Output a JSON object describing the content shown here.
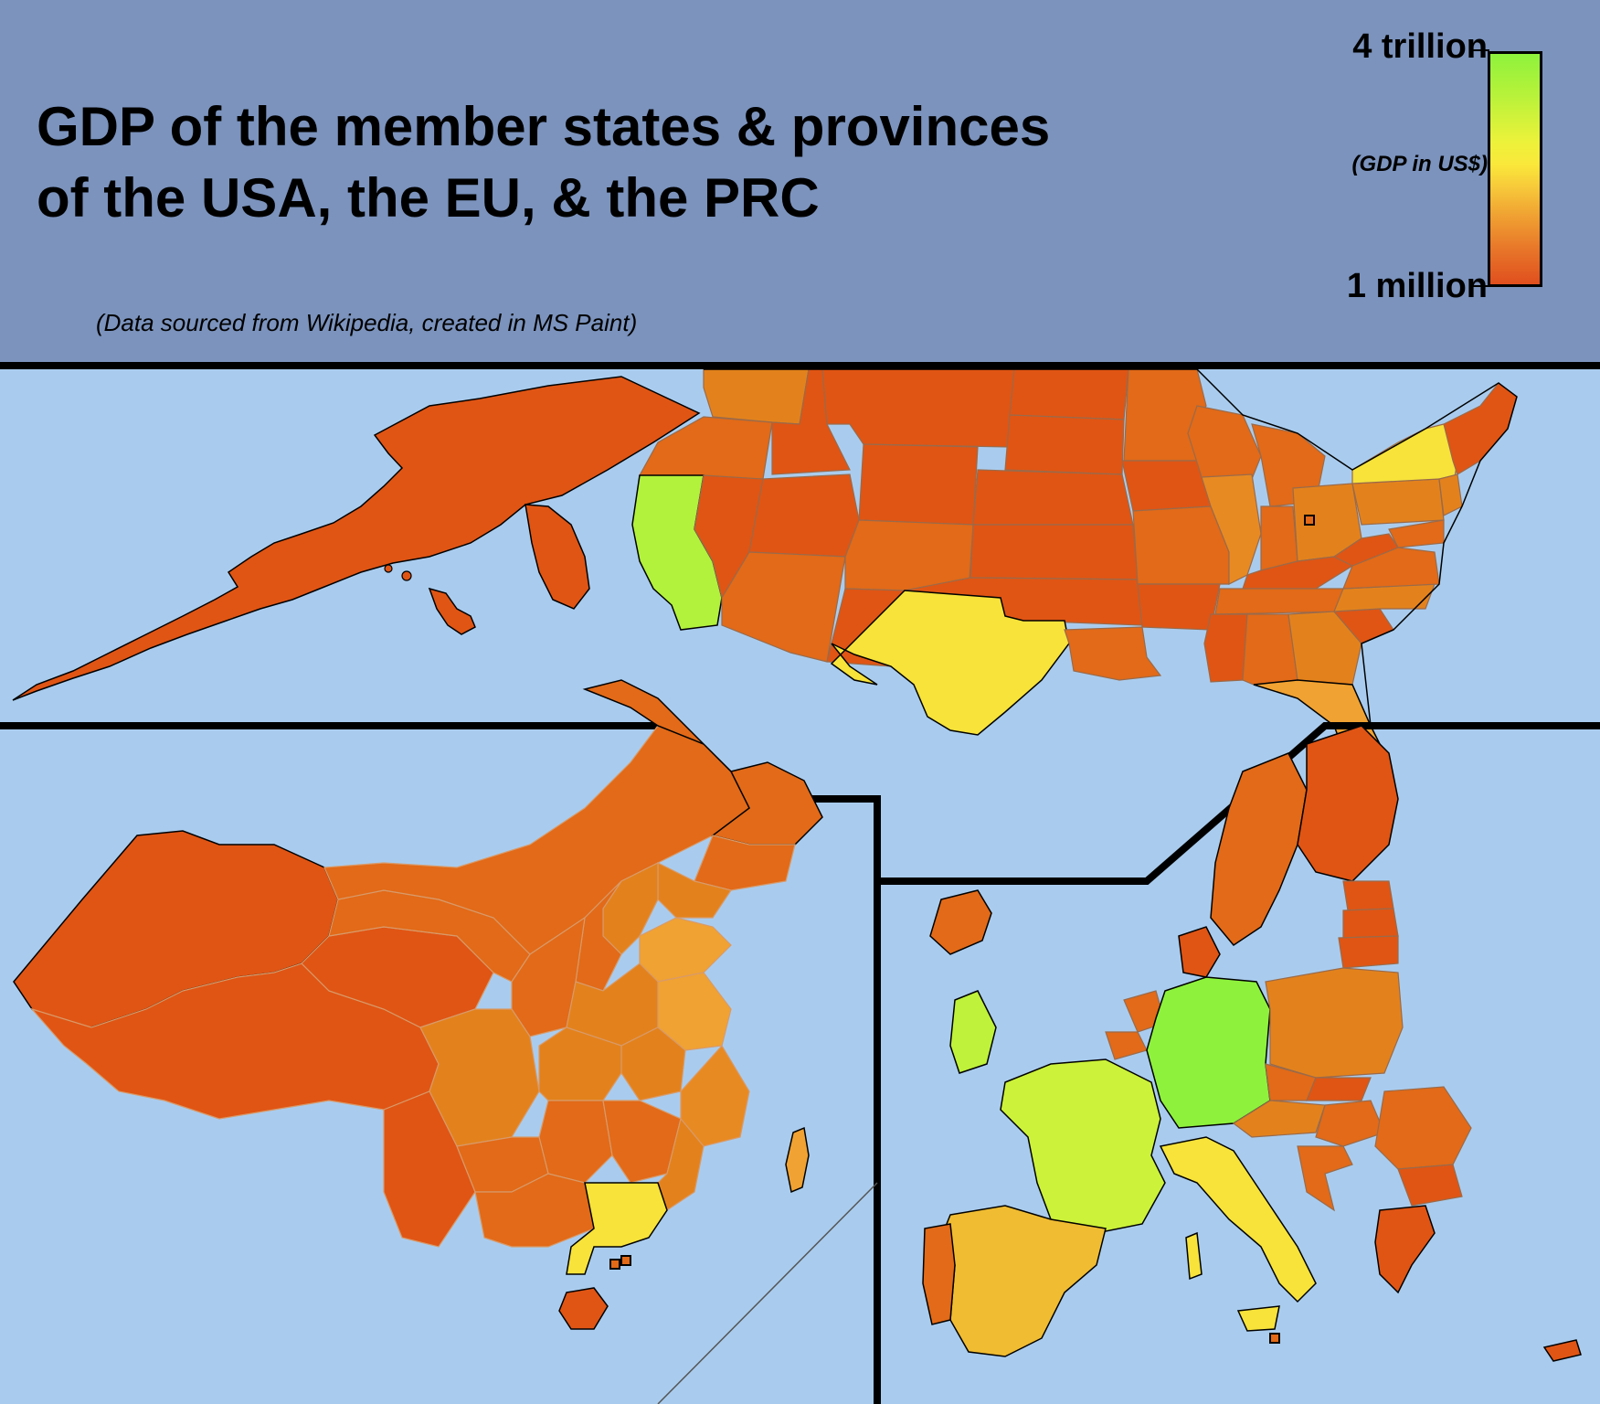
{
  "title": {
    "line1": "GDP of the member states & provinces",
    "line2": "of the USA, the EU, & the PRC"
  },
  "source_note": "(Data sourced from Wikipedia, created in MS Paint)",
  "legend": {
    "max_label": "4 trillion",
    "min_label": "1 million",
    "unit_label": "(GDP in US$)",
    "color_high": "#8ef23c",
    "color_mid": "#fae83a",
    "color_low": "#e04f1e"
  },
  "colors": {
    "header_bg": "#7b93bd",
    "ocean": "#a9ccee",
    "border": "#000000"
  },
  "panels": [
    {
      "id": "usa",
      "name": "USA"
    },
    {
      "id": "prc",
      "name": "PRC"
    },
    {
      "id": "eu",
      "name": "EU"
    }
  ]
}
